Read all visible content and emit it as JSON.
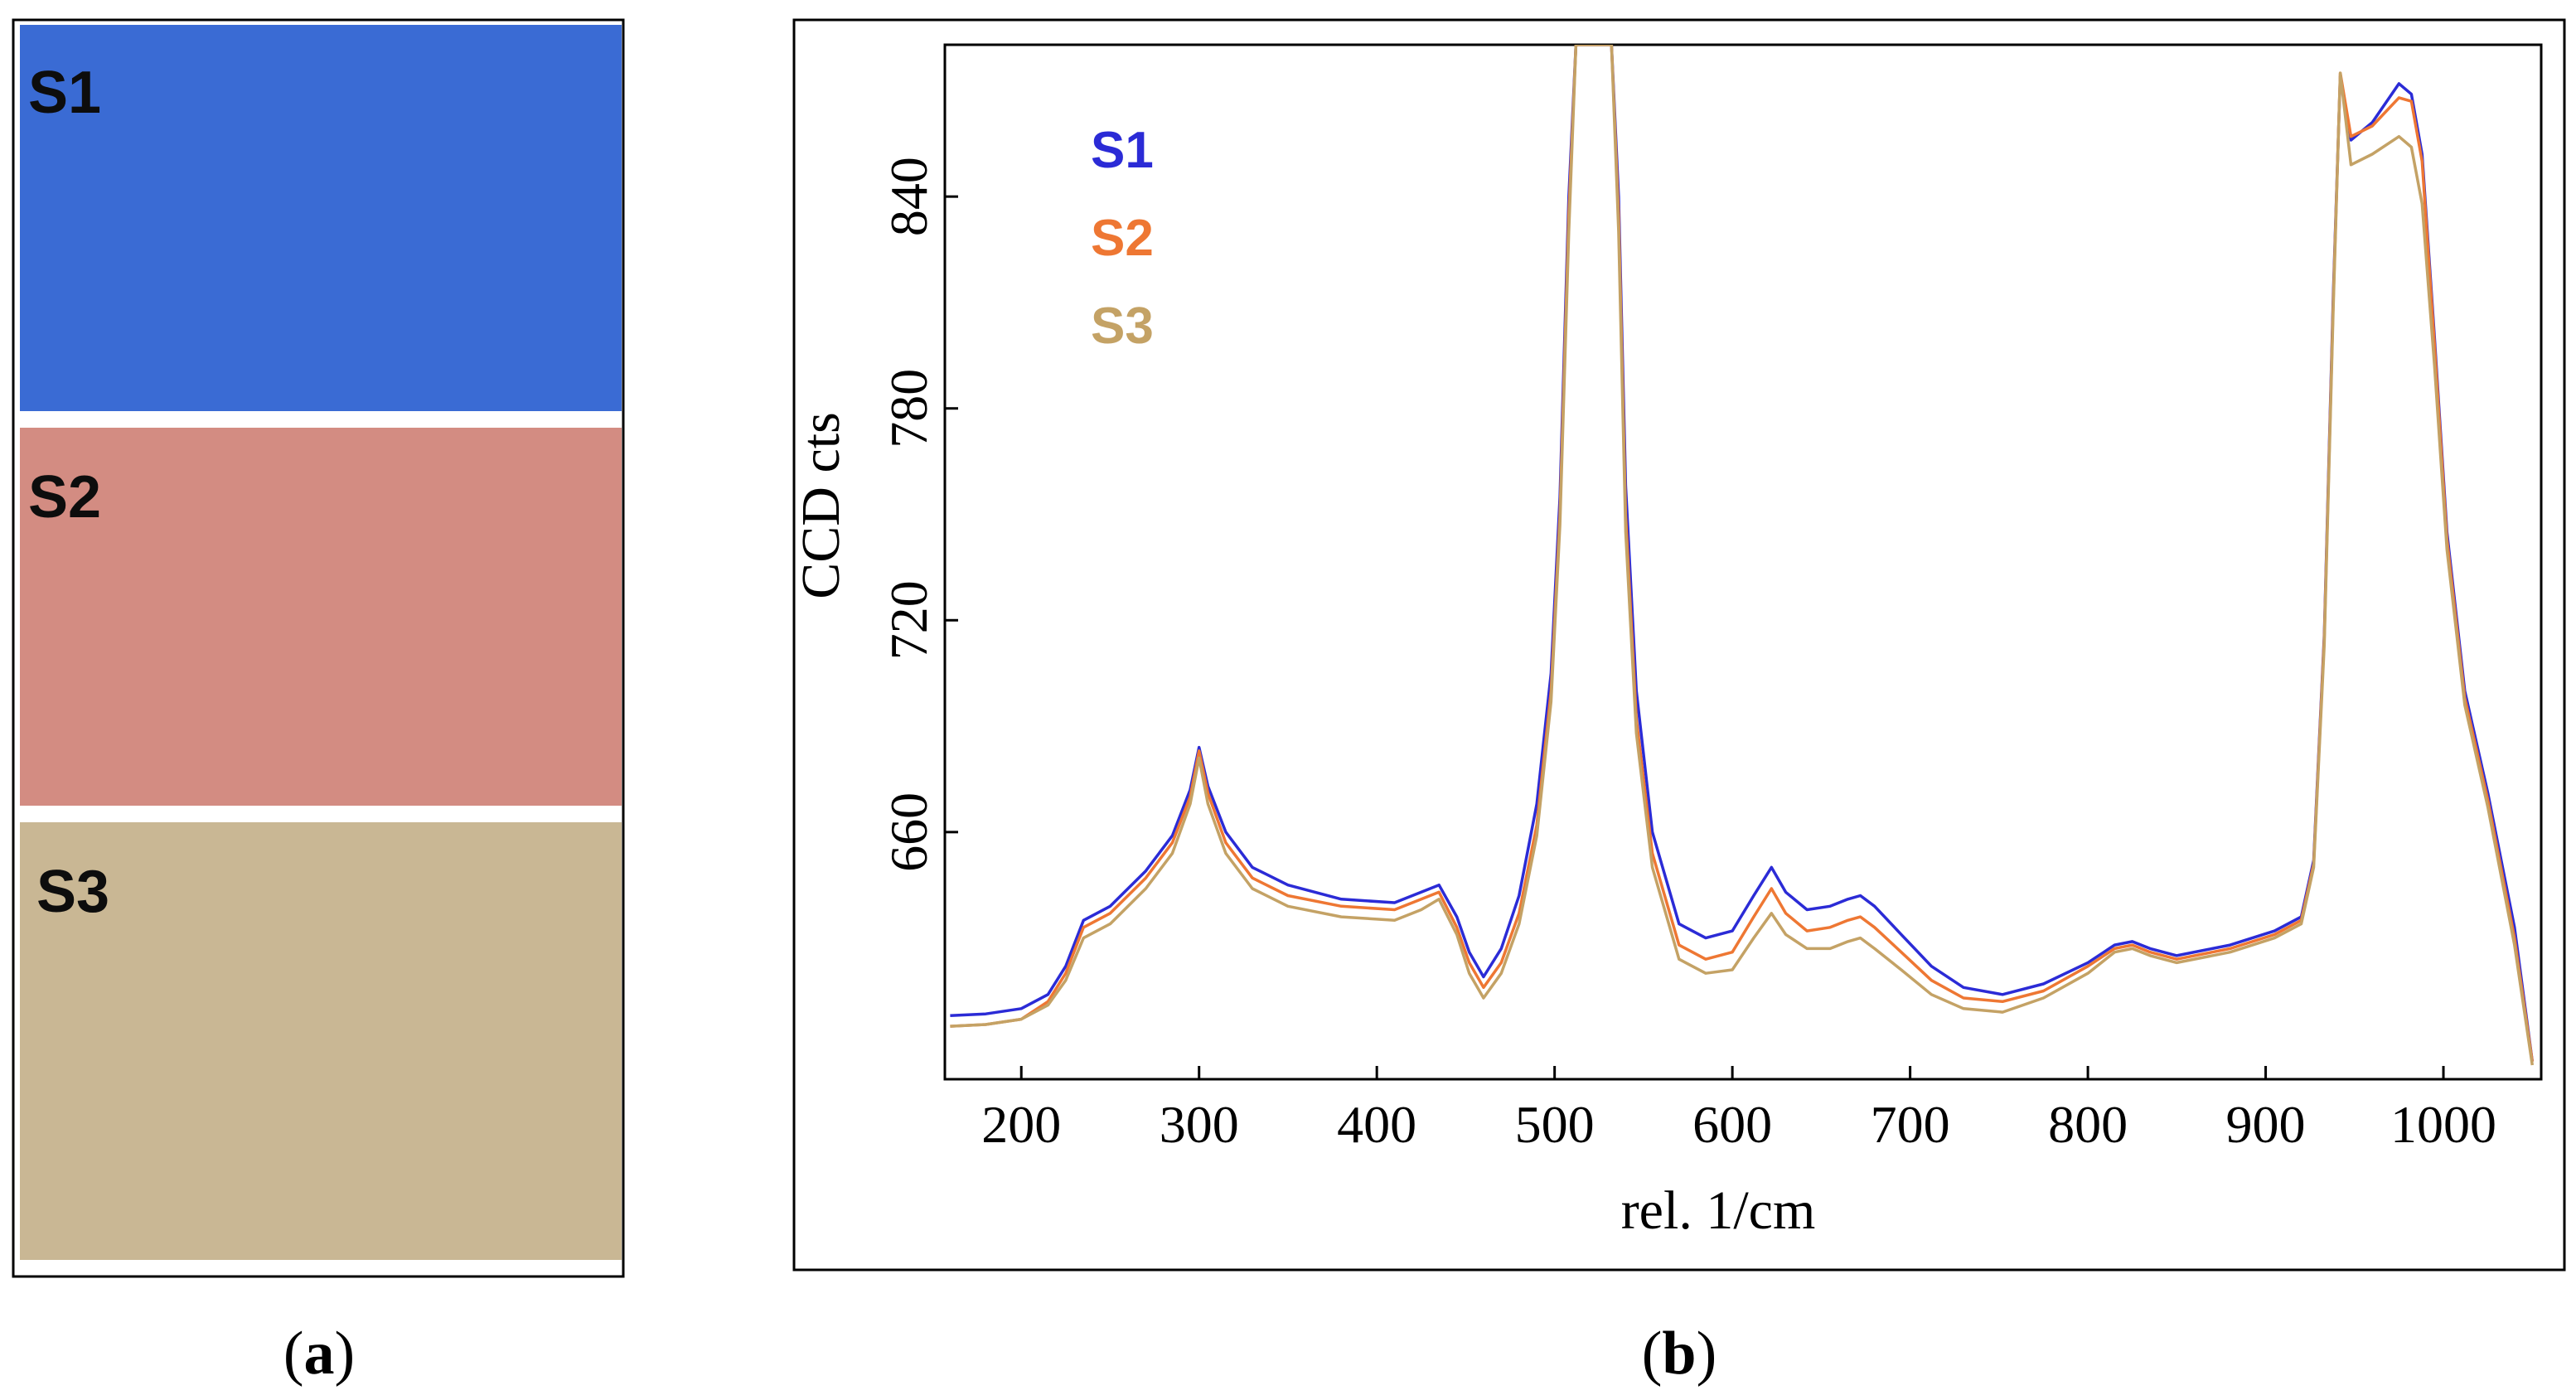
{
  "panel_a": {
    "caption_letter": "a",
    "swatches": [
      {
        "label": "S1",
        "color": "#3a6bd4"
      },
      {
        "label": "S2",
        "color": "#d38c82"
      },
      {
        "label": "S3",
        "color": "#c9b794"
      }
    ]
  },
  "panel_b": {
    "caption_letter": "b"
  },
  "chart_data": {
    "type": "line",
    "title": "",
    "xlabel": "rel. 1/cm",
    "ylabel": "CCD cts",
    "xlim": [
      157,
      1055
    ],
    "ylim": [
      590,
      883
    ],
    "xticks": [
      200,
      300,
      400,
      500,
      600,
      700,
      800,
      900,
      1000
    ],
    "yticks": [
      660,
      720,
      780,
      840
    ],
    "legend": {
      "position": "top-left"
    },
    "series": [
      {
        "name": "S1",
        "color": "#2b2bd6",
        "x": [
          160,
          180,
          200,
          215,
          225,
          235,
          250,
          270,
          285,
          295,
          300,
          305,
          315,
          330,
          350,
          380,
          410,
          425,
          435,
          445,
          452,
          460,
          470,
          480,
          490,
          498,
          503,
          508,
          512,
          532,
          536,
          540,
          546,
          555,
          570,
          585,
          600,
          612,
          622,
          630,
          642,
          655,
          665,
          672,
          680,
          695,
          712,
          730,
          752,
          775,
          800,
          815,
          825,
          835,
          850,
          880,
          905,
          920,
          927,
          933,
          938,
          942,
          948,
          960,
          975,
          982,
          988,
          995,
          1002,
          1012,
          1025,
          1040,
          1050
        ],
        "y": [
          608,
          608.5,
          610,
          614,
          622,
          635,
          639,
          649,
          659,
          672,
          684,
          673,
          660,
          650,
          645,
          641,
          640,
          643,
          645,
          636,
          626,
          619,
          627,
          642,
          668,
          705,
          755,
          840,
          883,
          883,
          840,
          758,
          700,
          660,
          634,
          630,
          632,
          642,
          650,
          643,
          638,
          639,
          641,
          642,
          639,
          631,
          622,
          616,
          614,
          617,
          623,
          628,
          629,
          627,
          625,
          628,
          632,
          636,
          652,
          716,
          812,
          874,
          856,
          861,
          872,
          869,
          852,
          800,
          745,
          700,
          671,
          633,
          595
        ]
      },
      {
        "name": "S2",
        "color": "#ee7733",
        "x": [
          160,
          180,
          200,
          215,
          225,
          235,
          250,
          270,
          285,
          295,
          300,
          305,
          315,
          330,
          350,
          380,
          410,
          425,
          435,
          445,
          452,
          460,
          470,
          480,
          490,
          498,
          503,
          508,
          512,
          532,
          536,
          540,
          546,
          555,
          570,
          585,
          600,
          612,
          622,
          630,
          642,
          655,
          665,
          672,
          680,
          695,
          712,
          730,
          752,
          775,
          800,
          815,
          825,
          835,
          850,
          880,
          905,
          920,
          927,
          933,
          938,
          942,
          948,
          960,
          975,
          982,
          988,
          995,
          1002,
          1012,
          1025,
          1040,
          1050
        ],
        "y": [
          605,
          605.5,
          607,
          612,
          620,
          633,
          637,
          647,
          657,
          670,
          683,
          671,
          657,
          647,
          642,
          639,
          638,
          641,
          643,
          633,
          623,
          616,
          623,
          637,
          662,
          700,
          750,
          835,
          883,
          883,
          835,
          750,
          692,
          654,
          628,
          624,
          626,
          636,
          644,
          637,
          632,
          633,
          635,
          636,
          633,
          626,
          618,
          613,
          612,
          615,
          622,
          627,
          628,
          626,
          624,
          627,
          631,
          635,
          651,
          715,
          810,
          875,
          857,
          860,
          868,
          867,
          850,
          798,
          743,
          698,
          669,
          630,
          595
        ]
      },
      {
        "name": "S3",
        "color": "#c4a265",
        "x": [
          160,
          180,
          200,
          215,
          225,
          235,
          250,
          270,
          285,
          295,
          300,
          305,
          315,
          330,
          350,
          380,
          410,
          425,
          435,
          445,
          452,
          460,
          470,
          480,
          490,
          498,
          503,
          508,
          512,
          532,
          536,
          540,
          546,
          555,
          570,
          585,
          600,
          612,
          622,
          630,
          642,
          655,
          665,
          672,
          680,
          695,
          712,
          730,
          752,
          775,
          800,
          815,
          825,
          835,
          850,
          880,
          905,
          920,
          927,
          933,
          938,
          942,
          948,
          960,
          975,
          982,
          988,
          995,
          1002,
          1012,
          1025,
          1040,
          1050
        ],
        "y": [
          605,
          605.5,
          607,
          611,
          618,
          630,
          634,
          644,
          654,
          668,
          681,
          668,
          654,
          644,
          639,
          636,
          635,
          638,
          641,
          631,
          620,
          613,
          620,
          634,
          659,
          697,
          747,
          830,
          883,
          883,
          830,
          745,
          688,
          650,
          624,
          620,
          621,
          630,
          637,
          631,
          627,
          627,
          629,
          630,
          627,
          621,
          614,
          610,
          609,
          613,
          620,
          626,
          627,
          625,
          623,
          626,
          630,
          634,
          650,
          713,
          808,
          875,
          849,
          852,
          857,
          854,
          838,
          792,
          740,
          696,
          667,
          628,
          594
        ]
      }
    ]
  }
}
